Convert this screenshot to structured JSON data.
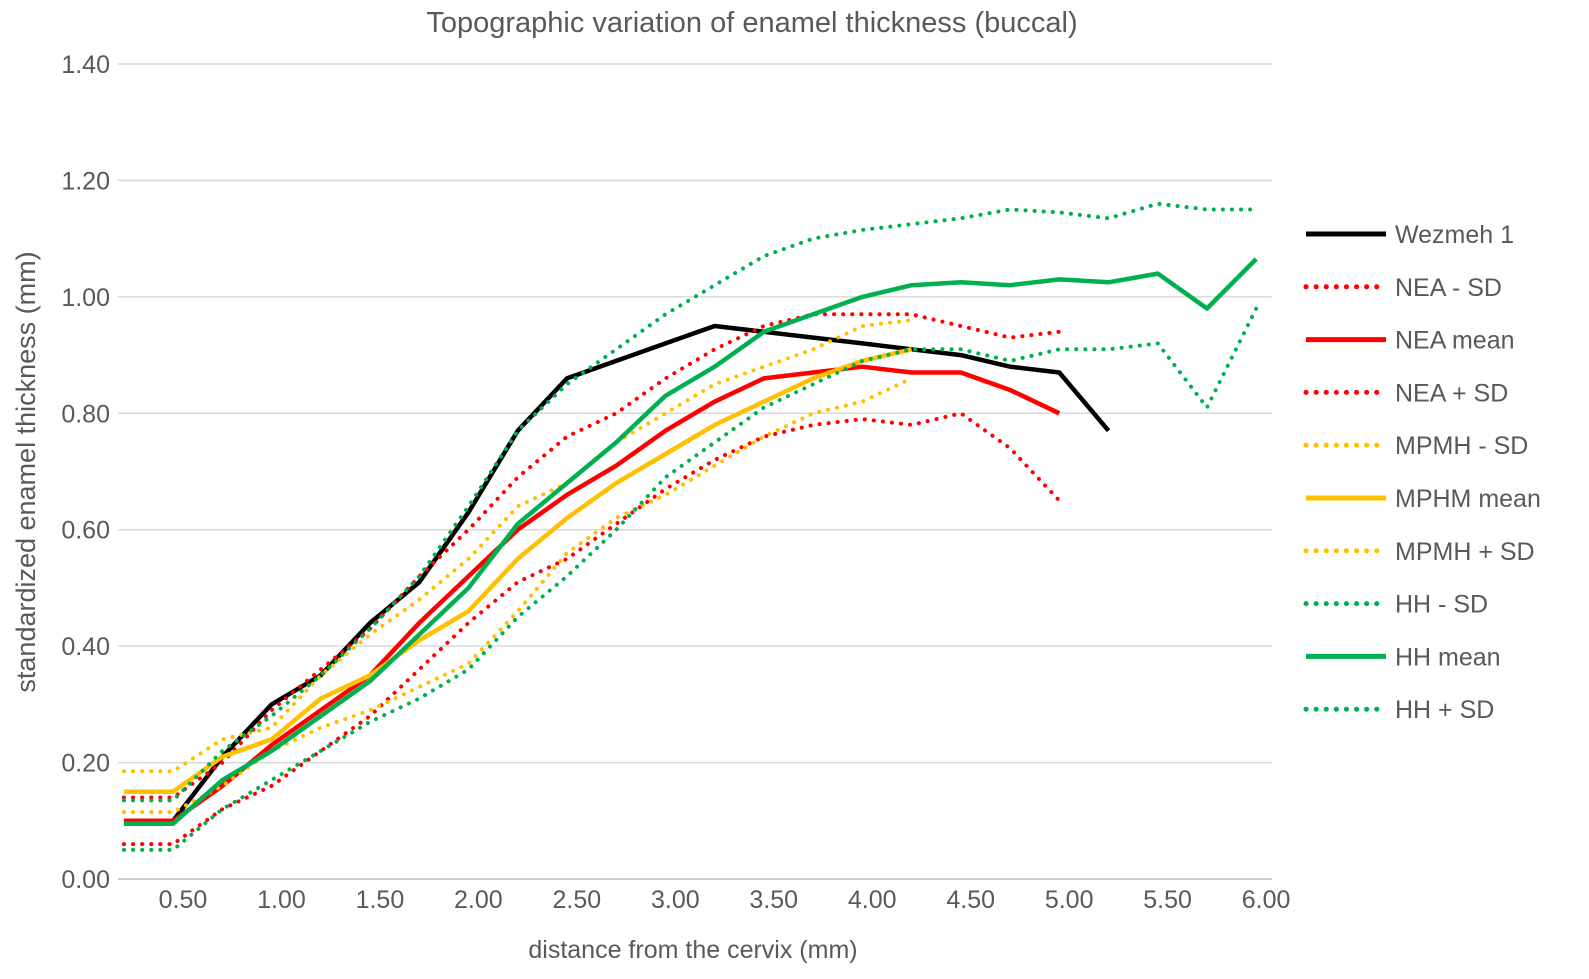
{
  "chart_data": {
    "type": "line",
    "title": "Topographic variation of enamel thickness (buccal)",
    "xlabel": "distance from the cervix (mm)",
    "ylabel": "standardized enamel thickness  (mm)",
    "xlim": [
      0.17,
      6.03
    ],
    "ylim": [
      0,
      1.4
    ],
    "x_ticks": [
      "0.50",
      "1.00",
      "1.50",
      "2.00",
      "2.50",
      "3.00",
      "3.50",
      "4.00",
      "4.50",
      "5.00",
      "5.50",
      "6.00"
    ],
    "x_tick_values": [
      0.5,
      1.0,
      1.5,
      2.0,
      2.5,
      3.0,
      3.5,
      4.0,
      4.5,
      5.0,
      5.5,
      6.0
    ],
    "y_ticks": [
      "0.00",
      "0.20",
      "0.40",
      "0.60",
      "0.80",
      "1.00",
      "1.20",
      "1.40"
    ],
    "y_tick_values": [
      0,
      0.2,
      0.4,
      0.6,
      0.8,
      1.0,
      1.2,
      1.4
    ],
    "grid": true,
    "legend_position": "right",
    "series": [
      {
        "name": "Wezmeh 1",
        "color": "#000000",
        "dash": false,
        "x": [
          0.25,
          0.45,
          0.7,
          0.95,
          1.2,
          1.45,
          1.7,
          1.95,
          2.2,
          2.45,
          2.7,
          2.95,
          3.2,
          3.45,
          3.7,
          3.95,
          4.2,
          4.45,
          4.7,
          4.95,
          5.2
        ],
        "y": [
          0.1,
          0.1,
          0.21,
          0.3,
          0.35,
          0.44,
          0.51,
          0.63,
          0.77,
          0.86,
          0.89,
          0.92,
          0.95,
          0.94,
          0.93,
          0.92,
          0.91,
          0.9,
          0.88,
          0.87,
          0.77
        ]
      },
      {
        "name": "NEA - SD",
        "color": "#ff0000",
        "dash": true,
        "x": [
          0.2,
          0.45,
          0.7,
          0.95,
          1.2,
          1.45,
          1.7,
          1.95,
          2.2,
          2.45,
          2.7,
          2.95,
          3.2,
          3.45,
          3.7,
          3.95,
          4.2,
          4.45,
          4.7,
          4.95
        ],
        "y": [
          0.06,
          0.06,
          0.12,
          0.16,
          0.22,
          0.28,
          0.36,
          0.44,
          0.51,
          0.55,
          0.61,
          0.67,
          0.72,
          0.76,
          0.78,
          0.79,
          0.78,
          0.8,
          0.74,
          0.65
        ]
      },
      {
        "name": "NEA mean",
        "color": "#ff0000",
        "dash": false,
        "x": [
          0.2,
          0.45,
          0.7,
          0.95,
          1.2,
          1.45,
          1.7,
          1.95,
          2.2,
          2.45,
          2.7,
          2.95,
          3.2,
          3.45,
          3.7,
          3.95,
          4.2,
          4.45,
          4.7,
          4.95
        ],
        "y": [
          0.1,
          0.1,
          0.16,
          0.23,
          0.29,
          0.35,
          0.44,
          0.52,
          0.6,
          0.66,
          0.71,
          0.77,
          0.82,
          0.86,
          0.87,
          0.88,
          0.87,
          0.87,
          0.84,
          0.8
        ]
      },
      {
        "name": "NEA + SD",
        "color": "#ff0000",
        "dash": true,
        "x": [
          0.2,
          0.45,
          0.7,
          0.95,
          1.2,
          1.45,
          1.7,
          1.95,
          2.2,
          2.45,
          2.7,
          2.95,
          3.2,
          3.45,
          3.7,
          3.95,
          4.2,
          4.45,
          4.7,
          4.95
        ],
        "y": [
          0.14,
          0.14,
          0.2,
          0.29,
          0.36,
          0.43,
          0.52,
          0.6,
          0.69,
          0.76,
          0.8,
          0.86,
          0.91,
          0.95,
          0.97,
          0.97,
          0.97,
          0.95,
          0.93,
          0.94
        ]
      },
      {
        "name": "MPMH - SD",
        "color": "#ffc000",
        "dash": true,
        "x": [
          0.2,
          0.45,
          0.7,
          0.95,
          1.2,
          1.45,
          1.7,
          1.95,
          2.2,
          2.45,
          2.7,
          2.95,
          3.2,
          3.45,
          3.7,
          3.95,
          4.2
        ],
        "y": [
          0.115,
          0.115,
          0.16,
          0.22,
          0.26,
          0.29,
          0.33,
          0.37,
          0.46,
          0.56,
          0.62,
          0.66,
          0.71,
          0.76,
          0.8,
          0.82,
          0.86
        ]
      },
      {
        "name": "MPHM mean",
        "color": "#ffc000",
        "dash": false,
        "x": [
          0.2,
          0.45,
          0.7,
          0.95,
          1.2,
          1.45,
          1.7,
          1.95,
          2.2,
          2.45,
          2.7,
          2.95,
          3.2,
          3.45,
          3.7,
          3.95,
          4.2
        ],
        "y": [
          0.15,
          0.15,
          0.21,
          0.24,
          0.31,
          0.35,
          0.41,
          0.46,
          0.55,
          0.62,
          0.68,
          0.73,
          0.78,
          0.82,
          0.86,
          0.89,
          0.91
        ]
      },
      {
        "name": "MPMH + SD",
        "color": "#ffc000",
        "dash": true,
        "x": [
          0.2,
          0.45,
          0.7,
          0.95,
          1.2,
          1.45,
          1.7,
          1.95,
          2.2,
          2.45,
          2.7,
          2.95,
          3.2,
          3.45,
          3.7,
          3.95,
          4.2
        ],
        "y": [
          0.185,
          0.185,
          0.24,
          0.26,
          0.35,
          0.42,
          0.48,
          0.55,
          0.64,
          0.68,
          0.75,
          0.8,
          0.85,
          0.88,
          0.91,
          0.95,
          0.96
        ]
      },
      {
        "name": "HH - SD",
        "color": "#00b050",
        "dash": true,
        "x": [
          0.2,
          0.45,
          0.7,
          0.95,
          1.2,
          1.45,
          1.7,
          1.95,
          2.2,
          2.45,
          2.7,
          2.95,
          3.2,
          3.45,
          3.7,
          3.95,
          4.2,
          4.45,
          4.7,
          4.95,
          5.2,
          5.45,
          5.7,
          5.95
        ],
        "y": [
          0.05,
          0.05,
          0.12,
          0.17,
          0.22,
          0.27,
          0.31,
          0.36,
          0.45,
          0.52,
          0.6,
          0.69,
          0.75,
          0.81,
          0.85,
          0.89,
          0.91,
          0.91,
          0.89,
          0.91,
          0.91,
          0.92,
          0.81,
          0.98
        ]
      },
      {
        "name": "HH mean",
        "color": "#00b050",
        "dash": false,
        "x": [
          0.2,
          0.45,
          0.7,
          0.95,
          1.2,
          1.45,
          1.7,
          1.95,
          2.2,
          2.45,
          2.7,
          2.95,
          3.2,
          3.45,
          3.7,
          3.95,
          4.2,
          4.45,
          4.7,
          4.95,
          5.2,
          5.45,
          5.7,
          5.95
        ],
        "y": [
          0.095,
          0.095,
          0.17,
          0.22,
          0.28,
          0.34,
          0.42,
          0.5,
          0.61,
          0.68,
          0.75,
          0.83,
          0.88,
          0.94,
          0.97,
          1.0,
          1.02,
          1.025,
          1.02,
          1.03,
          1.025,
          1.04,
          0.98,
          1.065
        ]
      },
      {
        "name": "HH + SD",
        "color": "#00b050",
        "dash": true,
        "x": [
          0.2,
          0.45,
          0.7,
          0.95,
          1.2,
          1.45,
          1.7,
          1.95,
          2.2,
          2.45,
          2.7,
          2.95,
          3.2,
          3.45,
          3.7,
          3.95,
          4.2,
          4.45,
          4.7,
          4.95,
          5.2,
          5.45,
          5.7,
          5.95
        ],
        "y": [
          0.135,
          0.135,
          0.22,
          0.28,
          0.35,
          0.43,
          0.52,
          0.64,
          0.77,
          0.85,
          0.91,
          0.97,
          1.02,
          1.07,
          1.1,
          1.115,
          1.125,
          1.135,
          1.15,
          1.145,
          1.135,
          1.16,
          1.15,
          1.15
        ]
      }
    ]
  }
}
